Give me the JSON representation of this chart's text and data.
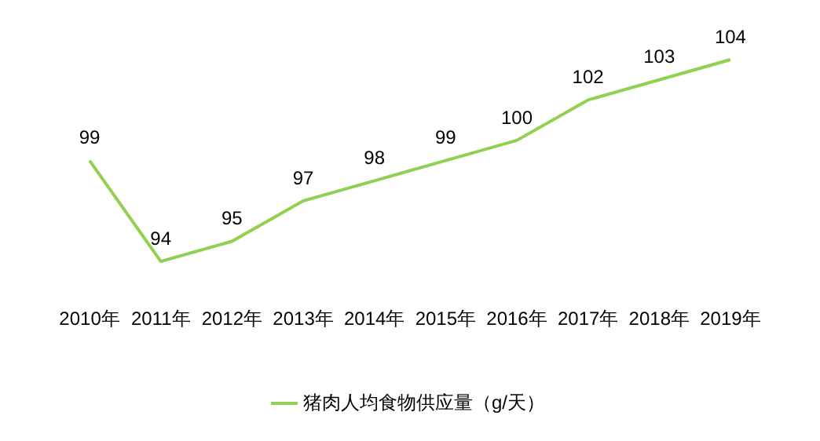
{
  "chart_data": {
    "type": "line",
    "categories": [
      "2010年",
      "2011年",
      "2012年",
      "2013年",
      "2014年",
      "2015年",
      "2016年",
      "2017年",
      "2018年",
      "2019年"
    ],
    "series": [
      {
        "name": "猪肉人均食物供应量（g/天）",
        "color": "#92d050",
        "values": [
          99,
          94,
          95,
          97,
          98,
          99,
          100,
          102,
          103,
          104
        ]
      }
    ],
    "data_labels": true,
    "legend": "bottom",
    "grid": false,
    "marker": "none"
  }
}
